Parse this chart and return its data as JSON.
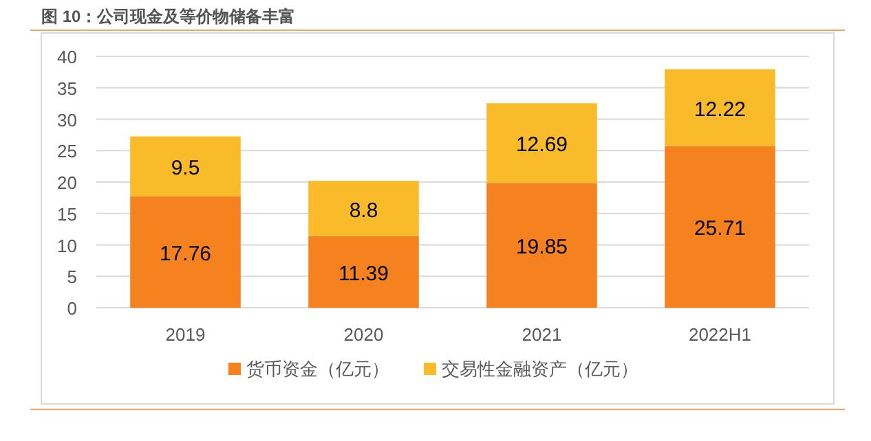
{
  "chart_data": {
    "type": "bar",
    "title": "图 10：公司现金及等价物储备丰富",
    "categories": [
      "2019",
      "2020",
      "2021",
      "2022H1"
    ],
    "stacked": true,
    "data_labels": true,
    "grid": "y",
    "legend": "bottom",
    "ylim": [
      0,
      40
    ],
    "yticks": [
      0,
      5,
      10,
      15,
      20,
      25,
      30,
      35,
      40
    ],
    "series": [
      {
        "name": "货币资金（亿元）",
        "color": "#f5821f",
        "values": [
          17.76,
          11.39,
          19.85,
          25.71
        ]
      },
      {
        "name": "交易性金融资产（亿元）",
        "color": "#f9bb2a",
        "values": [
          9.5,
          8.8,
          12.69,
          12.22
        ]
      }
    ]
  }
}
